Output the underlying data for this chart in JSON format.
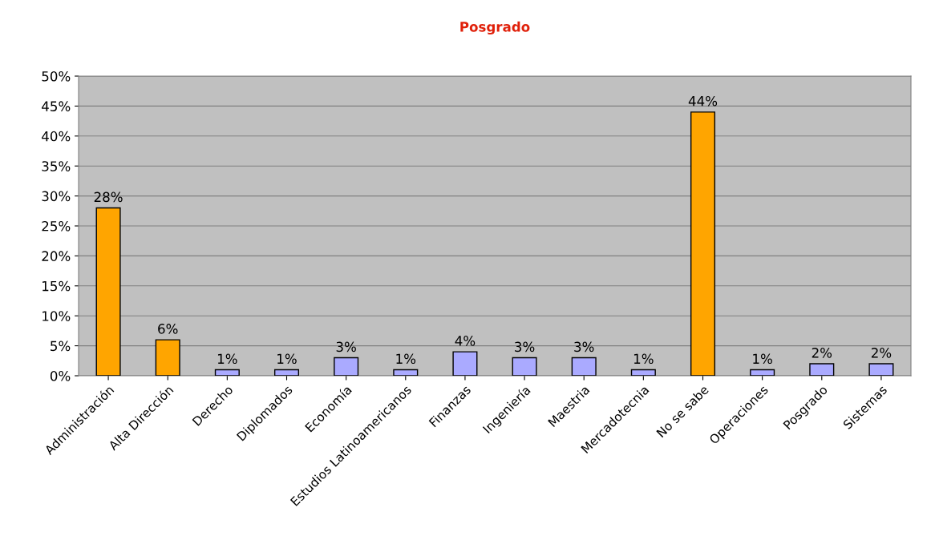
{
  "chart_data": {
    "type": "bar",
    "title": "Posgrado",
    "categories": [
      "Administración",
      "Alta Dirección",
      "Derecho",
      "Diplomados",
      "Economía",
      "Estudios Latinoamericanos",
      "Finanzas",
      "Ingeniería",
      "Maestria",
      "Mercadotecnia",
      "No se sabe",
      "Operaciones",
      "Posgrado",
      "Sistemas"
    ],
    "values": [
      28,
      6,
      1,
      1,
      3,
      1,
      4,
      3,
      3,
      1,
      44,
      1,
      2,
      2
    ],
    "colors": [
      "#ffa500",
      "#ffa500",
      "#aaaaff",
      "#aaaaff",
      "#aaaaff",
      "#aaaaff",
      "#aaaaff",
      "#aaaaff",
      "#aaaaff",
      "#aaaaff",
      "#ffa500",
      "#aaaaff",
      "#aaaaff",
      "#aaaaff"
    ],
    "value_labels": [
      "28%",
      "6%",
      "1%",
      "1%",
      "3%",
      "1%",
      "4%",
      "3%",
      "3%",
      "1%",
      "44%",
      "1%",
      "2%",
      "2%"
    ],
    "ylim": [
      0,
      50
    ],
    "yticks": [
      {
        "value": 0,
        "label": "0%"
      },
      {
        "value": 5,
        "label": "5%"
      },
      {
        "value": 10,
        "label": "10%"
      },
      {
        "value": 15,
        "label": "15%"
      },
      {
        "value": 20,
        "label": "20%"
      },
      {
        "value": 25,
        "label": "25%"
      },
      {
        "value": 30,
        "label": "30%"
      },
      {
        "value": 35,
        "label": "35%"
      },
      {
        "value": 40,
        "label": "40%"
      },
      {
        "value": 45,
        "label": "45%"
      },
      {
        "value": 50,
        "label": "50%"
      }
    ],
    "grid": "y"
  }
}
